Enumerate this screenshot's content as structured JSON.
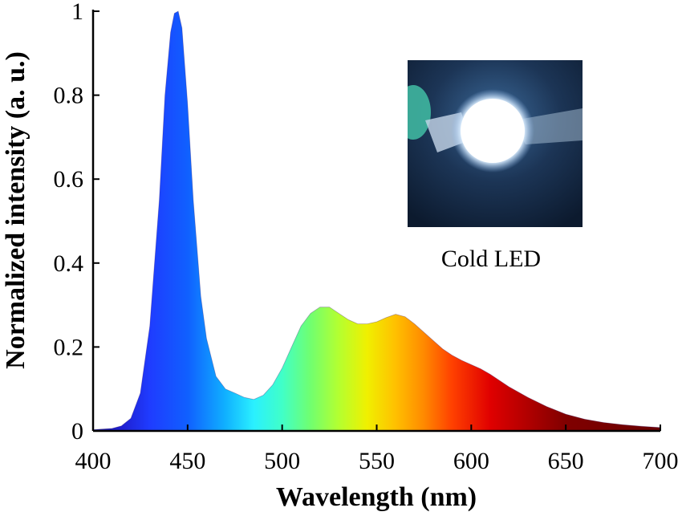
{
  "chart_data": {
    "type": "area",
    "title": "",
    "xlabel": "Wavelength (nm)",
    "ylabel": "Normalized intensity (a. u.)",
    "xlim": [
      400,
      700
    ],
    "ylim": [
      0,
      1
    ],
    "xticks": [
      400,
      450,
      500,
      550,
      600,
      650,
      700
    ],
    "xtick_labels": [
      "400",
      "450",
      "500",
      "550",
      "600",
      "650",
      "700"
    ],
    "yticks": [
      0,
      0.2,
      0.4,
      0.6,
      0.8,
      1
    ],
    "ytick_labels": [
      "0",
      "0.2",
      "0.4",
      "0.6",
      "0.8",
      "1"
    ],
    "grid": false,
    "fill": "spectral rainbow gradient by wavelength",
    "series": [
      {
        "x": [
          400,
          410,
          415,
          420,
          425,
          430,
          435,
          438,
          441,
          443,
          445,
          447,
          450,
          453,
          457,
          460,
          465,
          470,
          475,
          480,
          485,
          490,
          495,
          500,
          505,
          510,
          515,
          520,
          525,
          530,
          535,
          540,
          545,
          550,
          555,
          560,
          565,
          570,
          575,
          580,
          585,
          590,
          595,
          600,
          605,
          610,
          615,
          620,
          630,
          640,
          650,
          660,
          670,
          680,
          690,
          700
        ],
        "y": [
          0.003,
          0.006,
          0.012,
          0.03,
          0.09,
          0.25,
          0.55,
          0.8,
          0.95,
          0.995,
          1.0,
          0.96,
          0.78,
          0.55,
          0.32,
          0.22,
          0.13,
          0.1,
          0.09,
          0.08,
          0.075,
          0.085,
          0.11,
          0.15,
          0.2,
          0.25,
          0.28,
          0.295,
          0.295,
          0.28,
          0.265,
          0.255,
          0.255,
          0.26,
          0.27,
          0.278,
          0.272,
          0.255,
          0.235,
          0.215,
          0.195,
          0.18,
          0.168,
          0.158,
          0.148,
          0.135,
          0.12,
          0.105,
          0.08,
          0.058,
          0.04,
          0.028,
          0.02,
          0.015,
          0.011,
          0.008
        ]
      }
    ]
  },
  "inset": {
    "caption": "Cold LED",
    "image_description_icon": "glowing-led-photo"
  }
}
